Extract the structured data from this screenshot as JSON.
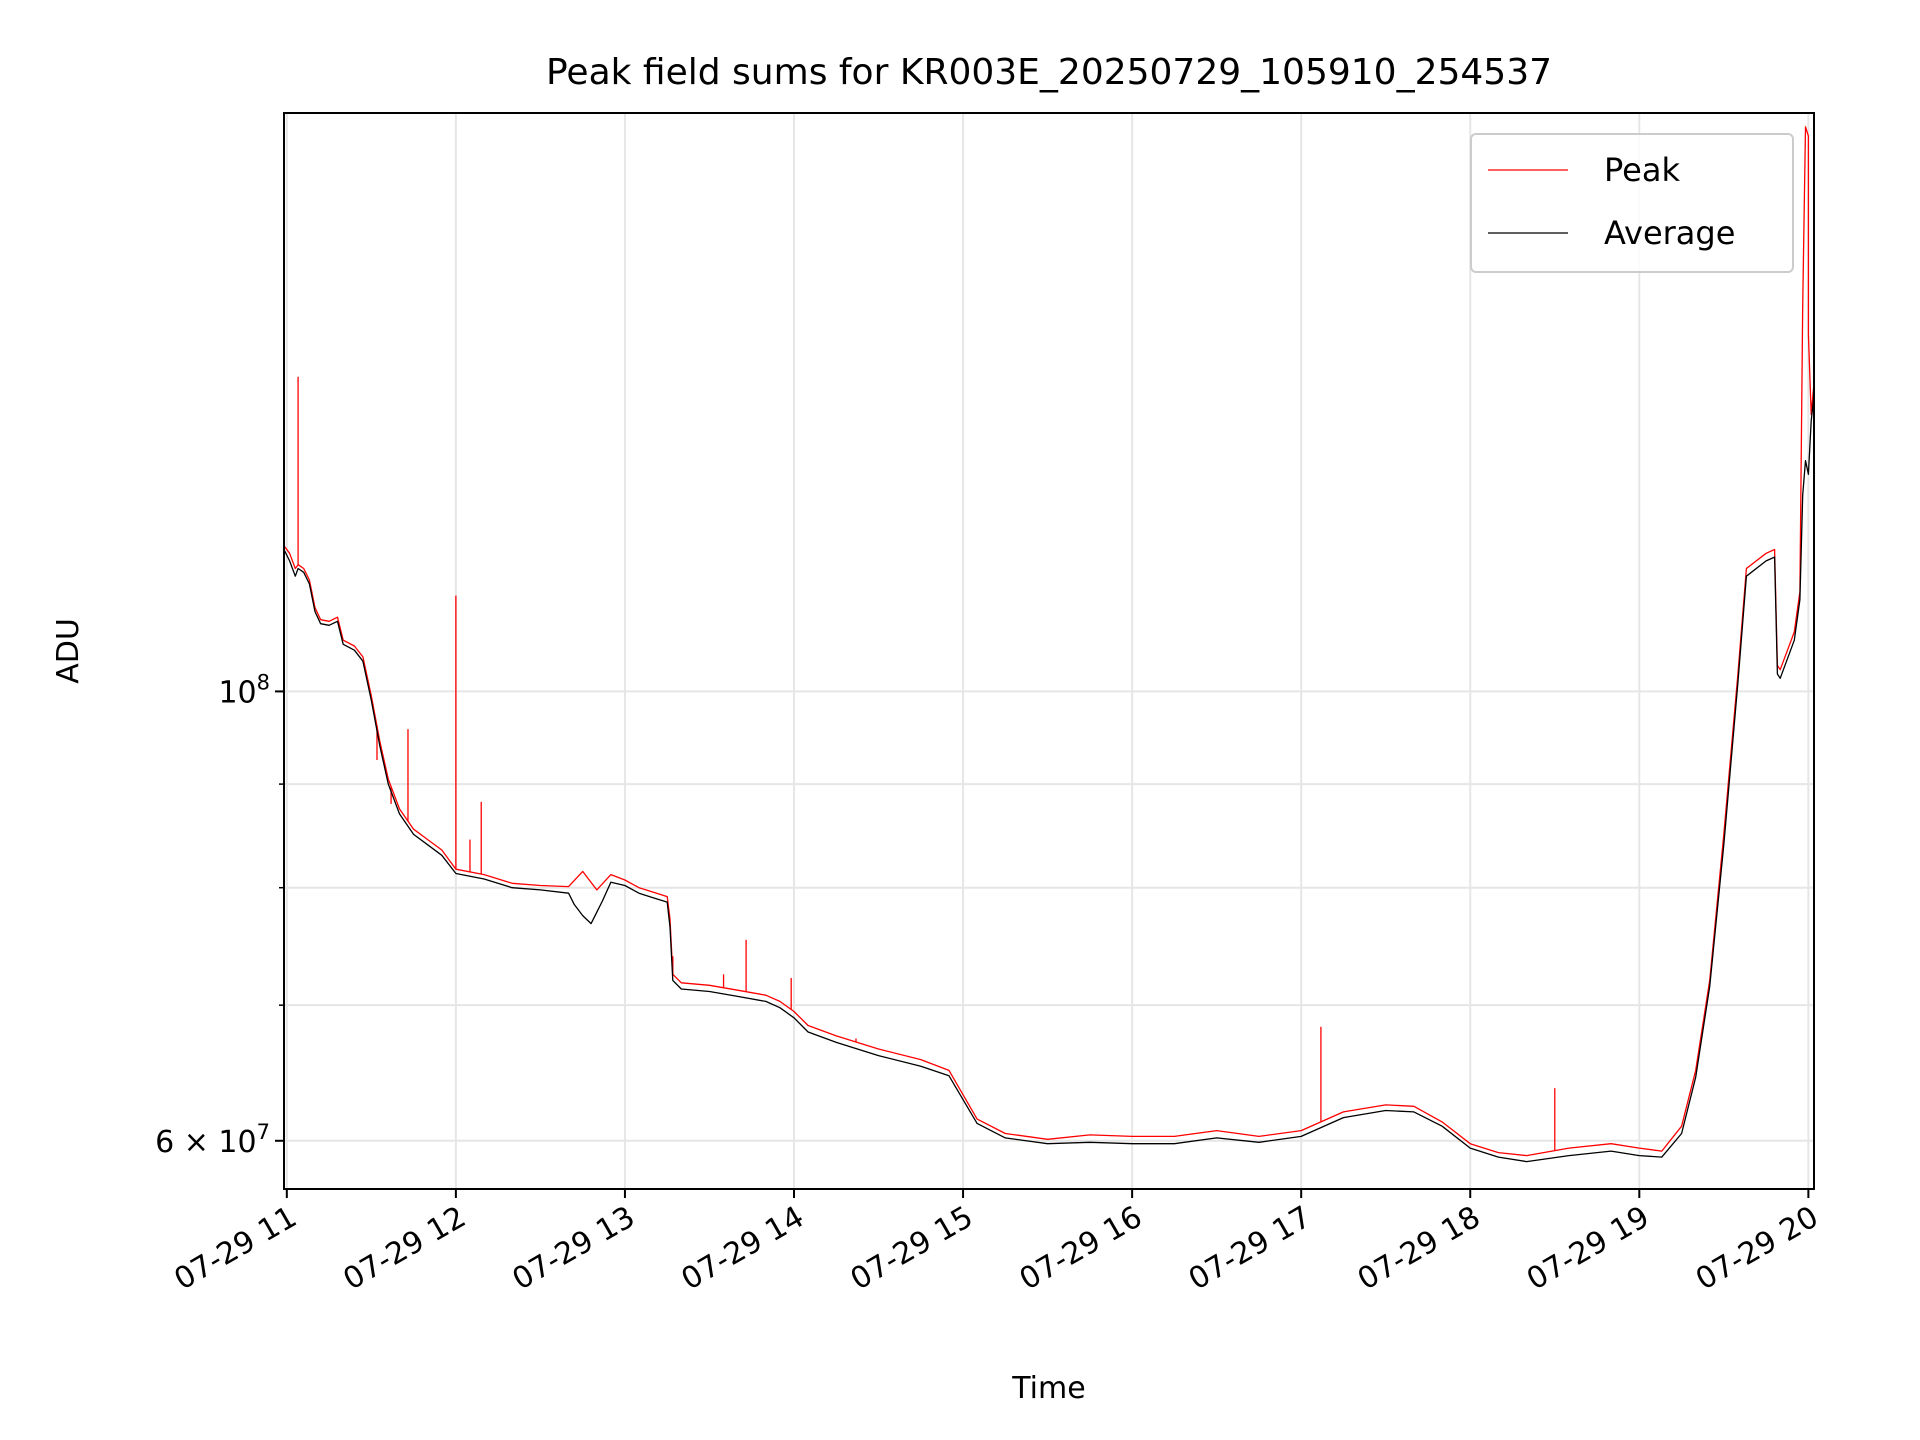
{
  "chart_data": {
    "type": "line",
    "title": "Peak field sums for KR003E_20250729_105910_254537",
    "xlabel": "Time",
    "ylabel": "ADU",
    "y_scale": "log",
    "grid": true,
    "legend_position": "top-right",
    "xlim": [
      "2025-07-29 10:59",
      "2025-07-29 20:02"
    ],
    "ylim": [
      56800000,
      193000000
    ],
    "x_ticks": [
      {
        "time": "2025-07-29 11:00",
        "label": "07-29 11"
      },
      {
        "time": "2025-07-29 12:00",
        "label": "07-29 12"
      },
      {
        "time": "2025-07-29 13:00",
        "label": "07-29 13"
      },
      {
        "time": "2025-07-29 14:00",
        "label": "07-29 14"
      },
      {
        "time": "2025-07-29 15:00",
        "label": "07-29 15"
      },
      {
        "time": "2025-07-29 16:00",
        "label": "07-29 16"
      },
      {
        "time": "2025-07-29 17:00",
        "label": "07-29 17"
      },
      {
        "time": "2025-07-29 18:00",
        "label": "07-29 18"
      },
      {
        "time": "2025-07-29 19:00",
        "label": "07-29 19"
      },
      {
        "time": "2025-07-29 20:00",
        "label": "07-29 20"
      }
    ],
    "y_major_ticks": [
      {
        "value": 100000000,
        "base": "10",
        "exp": "8"
      },
      {
        "value": 60000000,
        "mantissa": "6 × 10",
        "exp": "7"
      }
    ],
    "y_minor_ticks": [
      70000000,
      80000000,
      90000000
    ],
    "series": [
      {
        "name": "Peak",
        "color": "#ff0000",
        "points": [
          [
            "2025-07-29 10:59",
            118000000
          ],
          [
            "2025-07-29 11:01",
            117000000
          ],
          [
            "2025-07-29 11:03",
            115000000
          ],
          [
            "2025-07-29 11:04",
            115500000
          ],
          [
            "2025-07-29 11:06",
            115000000
          ],
          [
            "2025-07-29 11:08",
            113500000
          ],
          [
            "2025-07-29 11:10",
            110000000
          ],
          [
            "2025-07-29 11:12",
            108500000
          ],
          [
            "2025-07-29 11:15",
            108300000
          ],
          [
            "2025-07-29 11:18",
            108800000
          ],
          [
            "2025-07-29 11:20",
            106000000
          ],
          [
            "2025-07-29 11:24",
            105300000
          ],
          [
            "2025-07-29 11:27",
            104000000
          ],
          [
            "2025-07-29 11:30",
            99500000
          ],
          [
            "2025-07-29 11:33",
            94500000
          ],
          [
            "2025-07-29 11:36",
            90500000
          ],
          [
            "2025-07-29 11:40",
            87500000
          ],
          [
            "2025-07-29 11:45",
            85500000
          ],
          [
            "2025-07-29 11:50",
            84500000
          ],
          [
            "2025-07-29 11:55",
            83500000
          ],
          [
            "2025-07-29 12:00",
            81700000
          ],
          [
            "2025-07-29 12:10",
            81200000
          ],
          [
            "2025-07-29 12:20",
            80400000
          ],
          [
            "2025-07-29 12:30",
            80200000
          ],
          [
            "2025-07-29 12:40",
            80100000
          ],
          [
            "2025-07-29 12:45",
            81500000
          ],
          [
            "2025-07-29 12:50",
            79800000
          ],
          [
            "2025-07-29 12:55",
            81200000
          ],
          [
            "2025-07-29 13:00",
            80700000
          ],
          [
            "2025-07-29 13:05",
            80000000
          ],
          [
            "2025-07-29 13:10",
            79600000
          ],
          [
            "2025-07-29 13:15",
            79200000
          ],
          [
            "2025-07-29 13:16",
            77200000
          ],
          [
            "2025-07-29 13:17",
            72500000
          ],
          [
            "2025-07-29 13:20",
            71800000
          ],
          [
            "2025-07-29 13:30",
            71600000
          ],
          [
            "2025-07-29 13:40",
            71200000
          ],
          [
            "2025-07-29 13:50",
            70800000
          ],
          [
            "2025-07-29 13:55",
            70300000
          ],
          [
            "2025-07-29 14:00",
            69500000
          ],
          [
            "2025-07-29 14:05",
            68400000
          ],
          [
            "2025-07-29 14:15",
            67600000
          ],
          [
            "2025-07-29 14:30",
            66600000
          ],
          [
            "2025-07-29 14:45",
            65800000
          ],
          [
            "2025-07-29 14:55",
            65000000
          ],
          [
            "2025-07-29 15:05",
            61500000
          ],
          [
            "2025-07-29 15:15",
            60500000
          ],
          [
            "2025-07-29 15:30",
            60100000
          ],
          [
            "2025-07-29 15:45",
            60400000
          ],
          [
            "2025-07-29 16:00",
            60300000
          ],
          [
            "2025-07-29 16:15",
            60300000
          ],
          [
            "2025-07-29 16:30",
            60700000
          ],
          [
            "2025-07-29 16:45",
            60300000
          ],
          [
            "2025-07-29 17:00",
            60700000
          ],
          [
            "2025-07-29 17:15",
            62000000
          ],
          [
            "2025-07-29 17:30",
            62500000
          ],
          [
            "2025-07-29 17:40",
            62400000
          ],
          [
            "2025-07-29 17:50",
            61300000
          ],
          [
            "2025-07-29 18:00",
            59800000
          ],
          [
            "2025-07-29 18:10",
            59200000
          ],
          [
            "2025-07-29 18:20",
            59000000
          ],
          [
            "2025-07-29 18:35",
            59500000
          ],
          [
            "2025-07-29 18:50",
            59800000
          ],
          [
            "2025-07-29 19:00",
            59500000
          ],
          [
            "2025-07-29 19:08",
            59300000
          ],
          [
            "2025-07-29 19:15",
            61000000
          ],
          [
            "2025-07-29 19:20",
            65000000
          ],
          [
            "2025-07-29 19:25",
            72000000
          ],
          [
            "2025-07-29 19:30",
            85000000
          ],
          [
            "2025-07-29 19:35",
            102000000
          ],
          [
            "2025-07-29 19:38",
            115000000
          ],
          [
            "2025-07-29 19:45",
            117000000
          ],
          [
            "2025-07-29 19:48",
            117500000
          ],
          [
            "2025-07-29 19:49",
            103000000
          ],
          [
            "2025-07-29 19:50",
            102500000
          ],
          [
            "2025-07-29 19:55",
            107000000
          ],
          [
            "2025-07-29 19:57",
            112000000
          ],
          [
            "2025-07-29 19:58",
            155000000
          ],
          [
            "2025-07-29 19:59",
            190000000
          ],
          [
            "2025-07-29 20:00",
            188000000
          ],
          [
            "2025-07-29 20:00",
            150000000
          ],
          [
            "2025-07-29 20:01",
            137000000
          ],
          [
            "2025-07-29 20:02",
            142000000
          ]
        ],
        "spikes": [
          [
            "2025-07-29 11:04",
            143000000
          ],
          [
            "2025-07-29 11:32",
            92500000
          ],
          [
            "2025-07-29 11:37",
            88000000
          ],
          [
            "2025-07-29 11:43",
            95800000
          ],
          [
            "2025-07-29 12:00",
            111500000
          ],
          [
            "2025-07-29 12:05",
            84500000
          ],
          [
            "2025-07-29 12:09",
            88200000
          ],
          [
            "2025-07-29 13:17",
            74000000
          ],
          [
            "2025-07-29 13:35",
            72500000
          ],
          [
            "2025-07-29 13:43",
            75400000
          ],
          [
            "2025-07-29 13:59",
            72200000
          ],
          [
            "2025-07-29 14:22",
            67400000
          ],
          [
            "2025-07-29 17:07",
            68300000
          ],
          [
            "2025-07-29 18:30",
            63700000
          ]
        ]
      },
      {
        "name": "Average",
        "color": "#000000",
        "points": [
          [
            "2025-07-29 10:59",
            117500000
          ],
          [
            "2025-07-29 11:01",
            116000000
          ],
          [
            "2025-07-29 11:03",
            114000000
          ],
          [
            "2025-07-29 11:04",
            115000000
          ],
          [
            "2025-07-29 11:06",
            114500000
          ],
          [
            "2025-07-29 11:08",
            113000000
          ],
          [
            "2025-07-29 11:10",
            109500000
          ],
          [
            "2025-07-29 11:12",
            108000000
          ],
          [
            "2025-07-29 11:15",
            107800000
          ],
          [
            "2025-07-29 11:18",
            108300000
          ],
          [
            "2025-07-29 11:20",
            105500000
          ],
          [
            "2025-07-29 11:24",
            104800000
          ],
          [
            "2025-07-29 11:27",
            103500000
          ],
          [
            "2025-07-29 11:30",
            99000000
          ],
          [
            "2025-07-29 11:33",
            94000000
          ],
          [
            "2025-07-29 11:36",
            90000000
          ],
          [
            "2025-07-29 11:40",
            87000000
          ],
          [
            "2025-07-29 11:45",
            85000000
          ],
          [
            "2025-07-29 11:50",
            84000000
          ],
          [
            "2025-07-29 11:55",
            83000000
          ],
          [
            "2025-07-29 12:00",
            81300000
          ],
          [
            "2025-07-29 12:10",
            80800000
          ],
          [
            "2025-07-29 12:20",
            80000000
          ],
          [
            "2025-07-29 12:30",
            79800000
          ],
          [
            "2025-07-29 12:40",
            79500000
          ],
          [
            "2025-07-29 12:42",
            78500000
          ],
          [
            "2025-07-29 12:45",
            77500000
          ],
          [
            "2025-07-29 12:48",
            76800000
          ],
          [
            "2025-07-29 12:50",
            77800000
          ],
          [
            "2025-07-29 12:52",
            78800000
          ],
          [
            "2025-07-29 12:55",
            80500000
          ],
          [
            "2025-07-29 13:00",
            80200000
          ],
          [
            "2025-07-29 13:05",
            79500000
          ],
          [
            "2025-07-29 13:10",
            79100000
          ],
          [
            "2025-07-29 13:15",
            78700000
          ],
          [
            "2025-07-29 13:16",
            76500000
          ],
          [
            "2025-07-29 13:17",
            72000000
          ],
          [
            "2025-07-29 13:20",
            71300000
          ],
          [
            "2025-07-29 13:30",
            71100000
          ],
          [
            "2025-07-29 13:40",
            70700000
          ],
          [
            "2025-07-29 13:50",
            70300000
          ],
          [
            "2025-07-29 13:55",
            69800000
          ],
          [
            "2025-07-29 14:00",
            69000000
          ],
          [
            "2025-07-29 14:05",
            67900000
          ],
          [
            "2025-07-29 14:15",
            67100000
          ],
          [
            "2025-07-29 14:30",
            66100000
          ],
          [
            "2025-07-29 14:45",
            65300000
          ],
          [
            "2025-07-29 14:55",
            64600000
          ],
          [
            "2025-07-29 15:05",
            61200000
          ],
          [
            "2025-07-29 15:15",
            60200000
          ],
          [
            "2025-07-29 15:30",
            59800000
          ],
          [
            "2025-07-29 15:45",
            59900000
          ],
          [
            "2025-07-29 16:00",
            59800000
          ],
          [
            "2025-07-29 16:15",
            59800000
          ],
          [
            "2025-07-29 16:30",
            60200000
          ],
          [
            "2025-07-29 16:45",
            59900000
          ],
          [
            "2025-07-29 17:00",
            60300000
          ],
          [
            "2025-07-29 17:15",
            61600000
          ],
          [
            "2025-07-29 17:30",
            62100000
          ],
          [
            "2025-07-29 17:40",
            62000000
          ],
          [
            "2025-07-29 17:50",
            61000000
          ],
          [
            "2025-07-29 18:00",
            59500000
          ],
          [
            "2025-07-29 18:10",
            58900000
          ],
          [
            "2025-07-29 18:20",
            58600000
          ],
          [
            "2025-07-29 18:35",
            59000000
          ],
          [
            "2025-07-29 18:50",
            59300000
          ],
          [
            "2025-07-29 19:00",
            59000000
          ],
          [
            "2025-07-29 19:08",
            58900000
          ],
          [
            "2025-07-29 19:15",
            60500000
          ],
          [
            "2025-07-29 19:20",
            64500000
          ],
          [
            "2025-07-29 19:25",
            71500000
          ],
          [
            "2025-07-29 19:30",
            84000000
          ],
          [
            "2025-07-29 19:35",
            101000000
          ],
          [
            "2025-07-29 19:38",
            114000000
          ],
          [
            "2025-07-29 19:45",
            116000000
          ],
          [
            "2025-07-29 19:48",
            116500000
          ],
          [
            "2025-07-29 19:49",
            102000000
          ],
          [
            "2025-07-29 19:50",
            101500000
          ],
          [
            "2025-07-29 19:55",
            106000000
          ],
          [
            "2025-07-29 19:57",
            111000000
          ],
          [
            "2025-07-29 19:58",
            125000000
          ],
          [
            "2025-07-29 19:59",
            130000000
          ],
          [
            "2025-07-29 20:00",
            128000000
          ],
          [
            "2025-07-29 20:01",
            136000000
          ],
          [
            "2025-07-29 20:02",
            140000000
          ]
        ]
      }
    ]
  }
}
